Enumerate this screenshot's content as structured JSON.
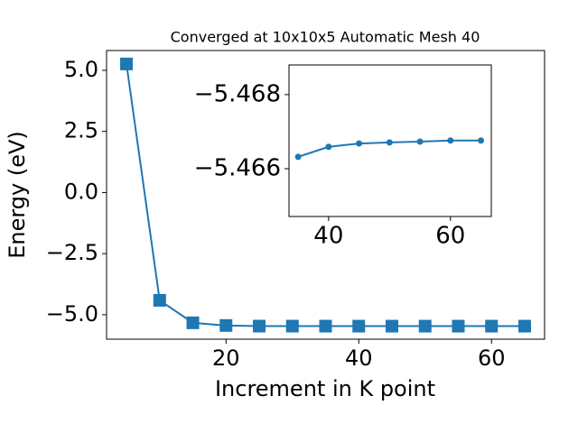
{
  "chart_data": [
    {
      "type": "line",
      "title": "Converged at 10x10x5 Automatic Mesh 40",
      "xlabel": "Increment in K point",
      "ylabel": "Energy (eV)",
      "x": [
        5,
        10,
        15,
        20,
        25,
        30,
        35,
        40,
        45,
        50,
        55,
        60,
        65
      ],
      "series": [
        {
          "color": "#1f77b4",
          "marker": "square",
          "values": [
            5.26,
            -4.41,
            -5.33,
            -5.44,
            -5.4655,
            -5.466,
            -5.46632,
            -5.46659,
            -5.46668,
            -5.46671,
            -5.46673,
            -5.46676,
            -5.46676
          ]
        }
      ],
      "xlim": [
        2.0,
        68.0
      ],
      "ylim": [
        -6.0,
        5.81
      ],
      "xticks": [
        20,
        40,
        60
      ],
      "yticks": [
        {
          "value": 5,
          "label": "5.0"
        },
        {
          "value": 2.5,
          "label": "2.5"
        },
        {
          "value": 0,
          "label": "0.0"
        },
        {
          "value": -2.5,
          "label": "−2.5"
        },
        {
          "value": -5,
          "label": "−5.0"
        }
      ]
    },
    {
      "type": "line",
      "x": [
        35,
        40,
        45,
        50,
        55,
        60,
        65
      ],
      "series": [
        {
          "color": "#1f77b4",
          "marker": "circle",
          "values": [
            -5.46632,
            -5.46659,
            -5.46668,
            -5.46671,
            -5.46673,
            -5.46676,
            -5.46676
          ]
        }
      ],
      "xlim": [
        33.5,
        66.7
      ],
      "ylim": [
        -5.46471,
        -5.4688
      ],
      "xticks": [
        40,
        60
      ],
      "yticks": [
        {
          "value": -5.468,
          "label": "−5.468"
        },
        {
          "value": -5.466,
          "label": "−5.466"
        }
      ]
    }
  ]
}
